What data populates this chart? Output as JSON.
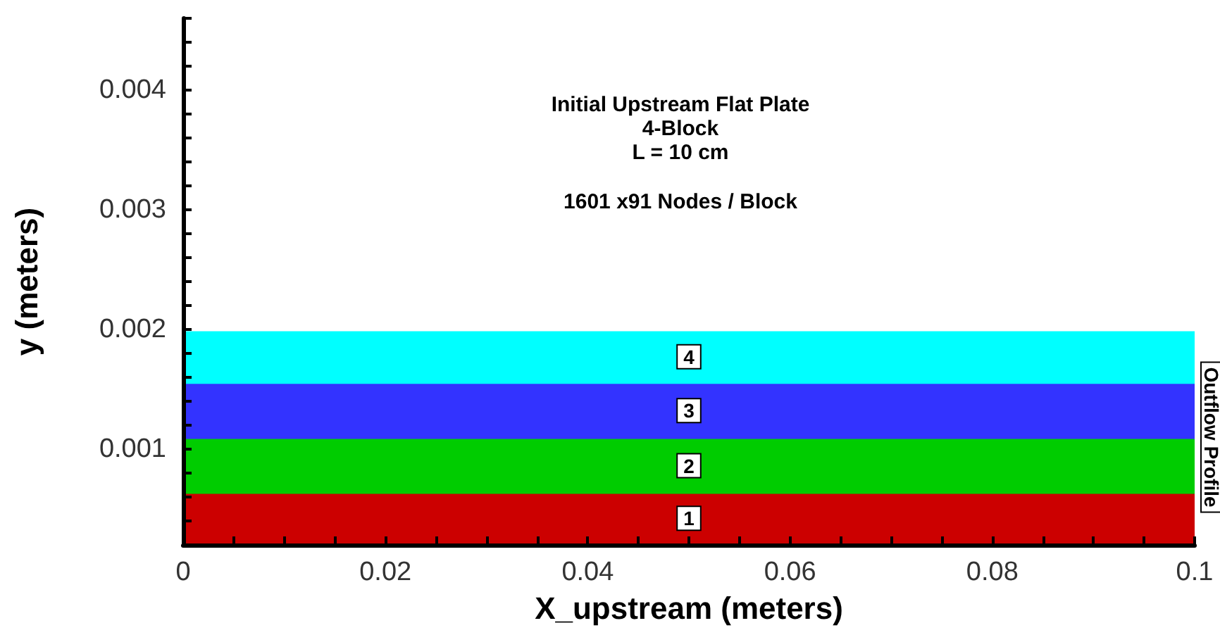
{
  "chart_data": {
    "type": "area",
    "title": "Initial Upstream Flat Plate",
    "subtitle": "4-Block",
    "annotations": [
      "L = 10 cm",
      "1601 x91 Nodes / Block",
      {
        "text": "Outflow Profile",
        "x": 0.1,
        "y": 0.0011
      }
    ],
    "xlabel": "X_upstream (meters)",
    "ylabel": "y (meters)",
    "x": [
      0,
      0.05,
      0.1
    ],
    "series": [
      {
        "name": "1",
        "color": "#cc0000",
        "values": [
          0.00062,
          0.00062,
          0.00062
        ]
      },
      {
        "name": "2",
        "color": "#00cc00",
        "values": [
          0.00108,
          0.00108,
          0.00108
        ]
      },
      {
        "name": "3",
        "color": "#3333ff",
        "values": [
          0.00154,
          0.00154,
          0.00154
        ]
      },
      {
        "name": "4",
        "color": "#00ffff",
        "values": [
          0.00198,
          0.00198,
          0.00198
        ]
      }
    ],
    "xlim": [
      0,
      0.1
    ],
    "xticks": [
      0,
      {
        "value": 0.005,
        "label": null
      },
      {
        "value": 0.01,
        "label": null
      },
      {
        "value": 0.015,
        "label": null
      },
      0.02,
      {
        "value": 0.025,
        "label": null
      },
      {
        "value": 0.03,
        "label": null
      },
      {
        "value": 0.035,
        "label": null
      },
      0.04,
      {
        "value": 0.045,
        "label": null
      },
      {
        "value": 0.05,
        "label": null
      },
      {
        "value": 0.055,
        "label": null
      },
      0.06,
      {
        "value": 0.065,
        "label": null
      },
      {
        "value": 0.07,
        "label": null
      },
      {
        "value": 0.075,
        "label": null
      },
      0.08,
      {
        "value": 0.085,
        "label": null
      },
      {
        "value": 0.09,
        "label": null
      },
      {
        "value": 0.095,
        "label": null
      },
      0.1
    ],
    "ylim": [
      0.0002,
      0.0046
    ],
    "yticks": [
      {
        "value": 0.0002,
        "label": null
      },
      {
        "value": 0.0004,
        "label": null
      },
      {
        "value": 0.0006,
        "label": null
      },
      {
        "value": 0.0008,
        "label": null
      },
      0.001,
      {
        "value": 0.0012,
        "label": null
      },
      {
        "value": 0.0014,
        "label": null
      },
      {
        "value": 0.0016,
        "label": null
      },
      {
        "value": 0.0018,
        "label": null
      },
      0.002,
      {
        "value": 0.0022,
        "label": null
      },
      {
        "value": 0.0024,
        "label": null
      },
      {
        "value": 0.0026,
        "label": null
      },
      {
        "value": 0.0028,
        "label": null
      },
      0.003,
      {
        "value": 0.0032,
        "label": null
      },
      {
        "value": 0.0034,
        "label": null
      },
      {
        "value": 0.0036,
        "label": null
      },
      {
        "value": 0.0038,
        "label": null
      },
      0.004,
      {
        "value": 0.0042,
        "label": null
      },
      {
        "value": 0.0044,
        "label": null
      },
      {
        "value": 0.0046,
        "label": null
      }
    ],
    "grid": false,
    "legend": false,
    "line_style": "solid"
  }
}
